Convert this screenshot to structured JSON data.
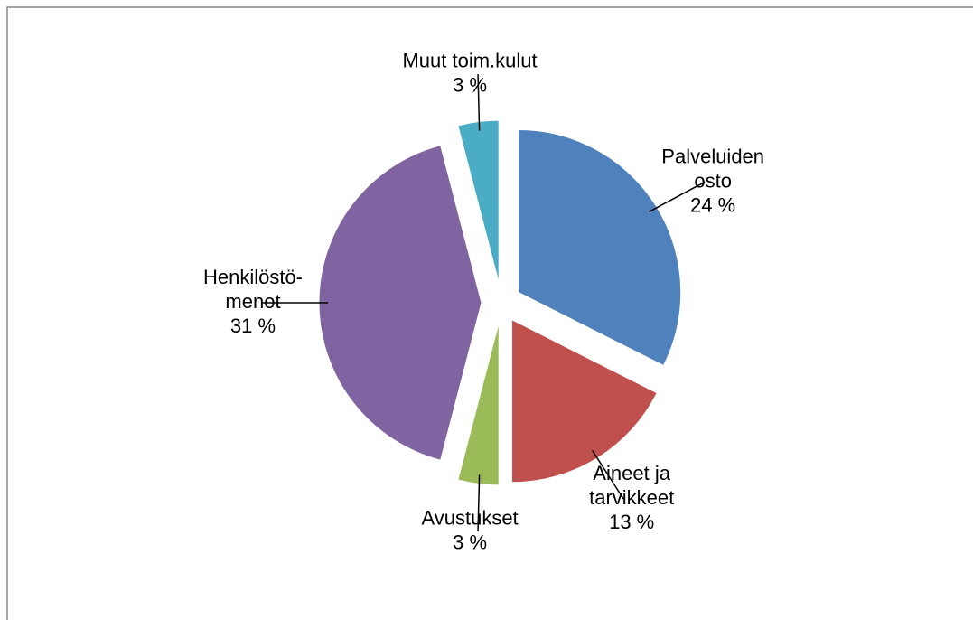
{
  "chart_data": {
    "type": "pie",
    "categories": [
      [
        "Palveluiden",
        "osto"
      ],
      [
        "Aineet ja",
        "tarvikkeet"
      ],
      [
        "Avustukset"
      ],
      [
        "Henkilöstö-",
        "menot"
      ],
      [
        "Muut toim.kulut"
      ]
    ],
    "values": [
      24,
      13,
      3,
      31,
      3
    ],
    "value_labels": [
      "24 %",
      "13 %",
      "3 %",
      "31 %",
      "3 %"
    ],
    "colors": [
      "#4f81bd",
      "#c0504d",
      "#9bbb59",
      "#8064a2",
      "#4bacc6"
    ]
  }
}
